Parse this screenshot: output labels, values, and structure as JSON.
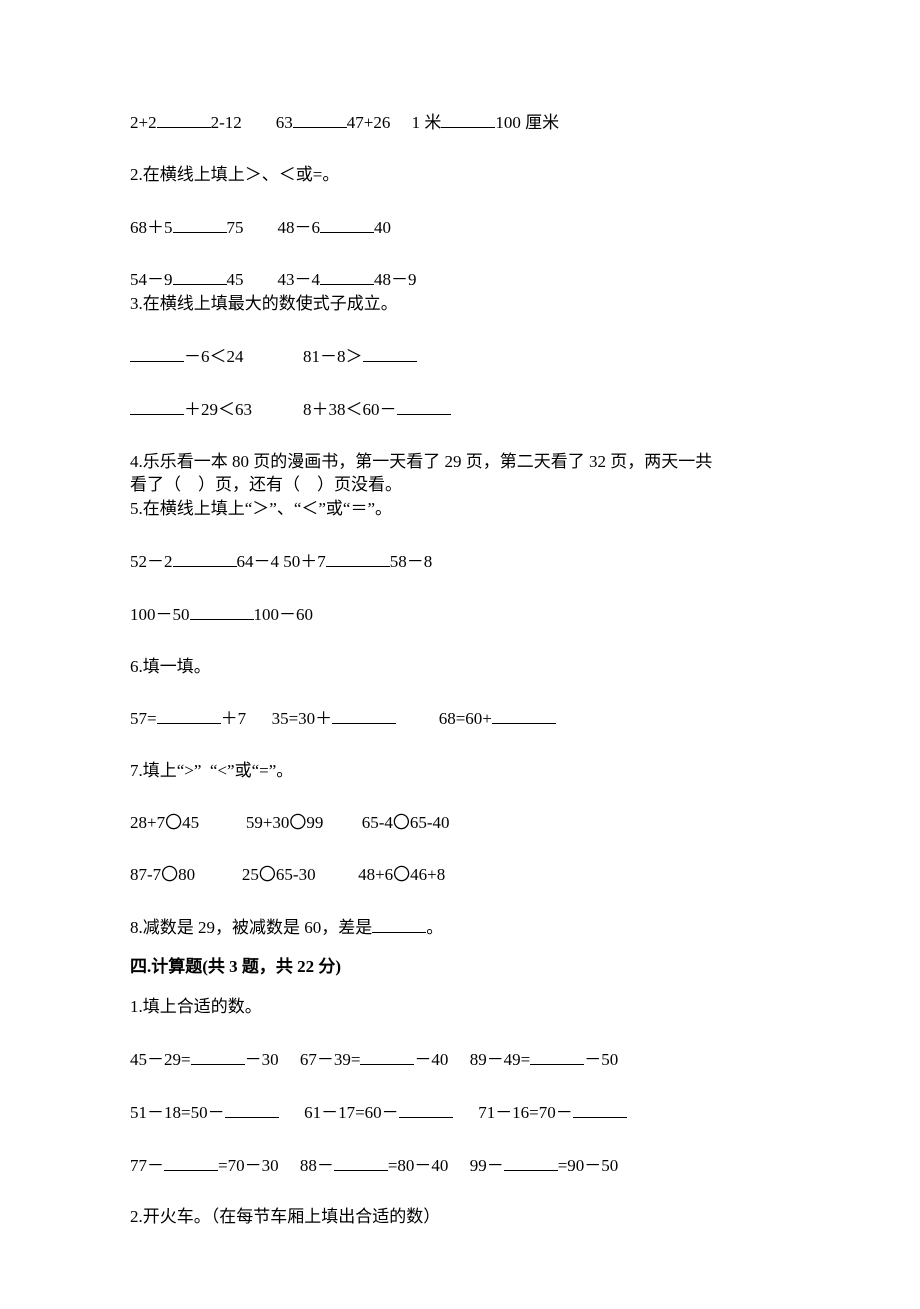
{
  "q1_row": {
    "a_left": "2+2",
    "a_right": "2-12",
    "b_left": "63",
    "b_right": "47+26",
    "c_left": "1 米",
    "c_right": "100 厘米"
  },
  "q2": {
    "title": "2.在横线上填上＞、＜或=。",
    "r1_a_left": "68＋5",
    "r1_a_right": "75",
    "r1_b_left": "48－6",
    "r1_b_right": "40",
    "r2_a_left": "54－9",
    "r2_a_right": "45",
    "r2_b_left": "43－4",
    "r2_b_right": "48－9"
  },
  "q3": {
    "title": "3.在横线上填最大的数使式子成立。",
    "r1_a_right": "－6＜24",
    "r1_b": "81－8＞",
    "r2_a_right": "＋29＜63",
    "r2_b_left": "8＋38＜60－"
  },
  "q4": {
    "line1": "4.乐乐看一本 80 页的漫画书，第一天看了 29 页，第二天看了 32 页，两天一共",
    "line2": "看了（    ）页，还有（    ）页没看。"
  },
  "q5": {
    "title": "5.在横线上填上“＞”、“＜”或“＝”。",
    "r1_a_left": "52－2",
    "r1_a_right": "64－4",
    "r1_b_left": " 50＋7",
    "r1_b_right": "58－8",
    "r2_left": "100－50",
    "r2_right": "100－60"
  },
  "q6": {
    "title": "6.填一填。",
    "a_left": "57=",
    "a_right": "＋7",
    "b_left": "35=30＋",
    "c_left": "68=60+"
  },
  "q7": {
    "title": "7.填上“>”  “<”或“=”。",
    "r1_a": "28+7〇45",
    "r1_b": "59+30〇99",
    "r1_c": "65-4〇65-40",
    "r2_a": "87-7〇80",
    "r2_b": "25〇65-30",
    "r2_c": "48+6〇46+8"
  },
  "q8": {
    "text_left": "8.减数是 29，被减数是 60，差是",
    "text_right": "。"
  },
  "section4": {
    "heading": "四.计算题(共 3 题，共 22 分)"
  },
  "calc1": {
    "title": "1.填上合适的数。",
    "r1_a_l": "45－29=",
    "r1_a_r": "－30",
    "r1_b_l": "67－39=",
    "r1_b_r": "－40",
    "r1_c_l": "89－49=",
    "r1_c_r": "－50",
    "r2_a_l": "51－18=50－",
    "r2_b_l": "61－17=60－",
    "r2_c_l": "71－16=70－",
    "r3_a_l": "77－",
    "r3_a_r": "=70－30",
    "r3_b_l": "88－",
    "r3_b_r": "=80－40",
    "r3_c_l": "99－",
    "r3_c_r": "=90－50"
  },
  "calc2": {
    "title": "2.开火车。（在每节车厢上填出合适的数）"
  }
}
